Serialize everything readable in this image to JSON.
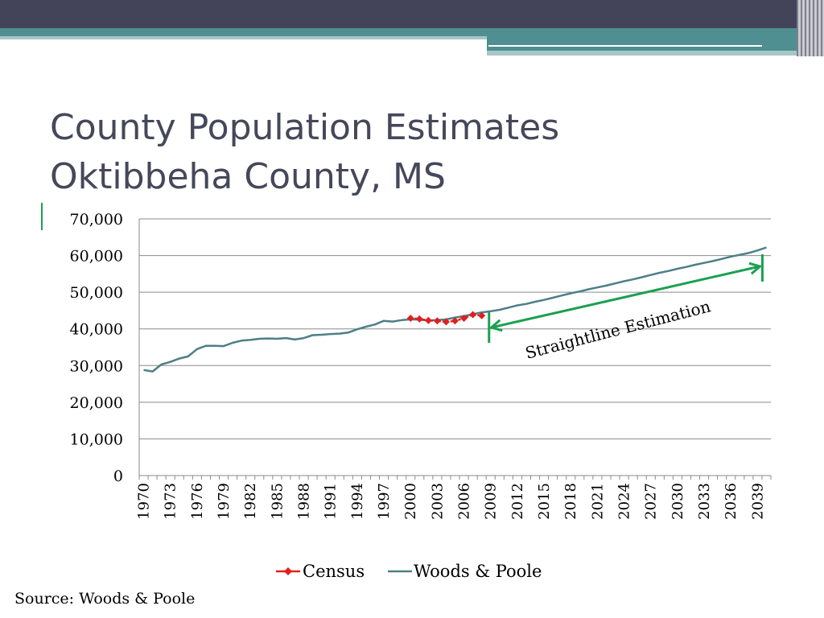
{
  "slide": {
    "title_line1": "County Population Estimates",
    "title_line2": "Oktibbeha County, MS",
    "source": "Source:  Woods & Poole"
  },
  "colors": {
    "header_dark": "#43445a",
    "header_teal": "#4f8f91",
    "header_light_teal": "#a8c6c7",
    "title": "#45475a",
    "census": "#e02020",
    "woods_poole": "#4d7f87",
    "annotation": "#1aa050"
  },
  "chart_data": {
    "type": "line",
    "title": "",
    "xlabel": "",
    "ylabel": "",
    "ylim": [
      0,
      70000
    ],
    "yticks": [
      0,
      10000,
      20000,
      30000,
      40000,
      50000,
      60000,
      70000
    ],
    "ytick_labels": [
      "0",
      "10,000",
      "20,000",
      "30,000",
      "40,000",
      "50,000",
      "60,000",
      "70,000"
    ],
    "x_range": [
      1970,
      2040
    ],
    "xtick_labels": [
      "1970",
      "1973",
      "1976",
      "1979",
      "1982",
      "1985",
      "1988",
      "1991",
      "1994",
      "1997",
      "2000",
      "2003",
      "2006",
      "2009",
      "2012",
      "2015",
      "2018",
      "2021",
      "2024",
      "2027",
      "2030",
      "2033",
      "2036",
      "2039"
    ],
    "grid": "horizontal",
    "legend_position": "bottom",
    "series": [
      {
        "name": "Census",
        "marker": "diamond",
        "x": [
          2000,
          2001,
          2002,
          2003,
          2004,
          2005,
          2006,
          2007,
          2008
        ],
        "values": [
          42900,
          42700,
          42300,
          42200,
          41900,
          42200,
          42900,
          43900,
          43600
        ]
      },
      {
        "name": "Woods & Poole",
        "marker": "none",
        "x": [
          1970,
          1971,
          1972,
          1973,
          1974,
          1975,
          1976,
          1977,
          1978,
          1979,
          1980,
          1981,
          1982,
          1983,
          1984,
          1985,
          1986,
          1987,
          1988,
          1989,
          1990,
          1991,
          1992,
          1993,
          1994,
          1995,
          1996,
          1997,
          1998,
          1999,
          2000,
          2001,
          2002,
          2003,
          2004,
          2005,
          2006,
          2007,
          2008,
          2009,
          2010,
          2011,
          2012,
          2013,
          2014,
          2015,
          2016,
          2017,
          2018,
          2019,
          2020,
          2021,
          2022,
          2023,
          2024,
          2025,
          2026,
          2027,
          2028,
          2029,
          2030,
          2031,
          2032,
          2033,
          2034,
          2035,
          2036,
          2037,
          2038,
          2039,
          2040
        ],
        "values": [
          28800,
          28400,
          30300,
          31000,
          31900,
          32500,
          34500,
          35400,
          35400,
          35300,
          36200,
          36800,
          37000,
          37300,
          37400,
          37300,
          37500,
          37100,
          37500,
          38300,
          38400,
          38600,
          38700,
          39000,
          39900,
          40600,
          41200,
          42200,
          42000,
          42400,
          42600,
          42500,
          42300,
          42400,
          42600,
          43100,
          43500,
          44000,
          44500,
          44800,
          45200,
          45800,
          46400,
          46800,
          47400,
          47900,
          48500,
          49100,
          49700,
          50200,
          50800,
          51300,
          51800,
          52400,
          53000,
          53500,
          54100,
          54700,
          55300,
          55800,
          56400,
          56900,
          57500,
          58000,
          58500,
          59100,
          59700,
          60200,
          60700,
          61400,
          62200
        ]
      }
    ],
    "annotation": {
      "text": "Straightline Estimation",
      "x_start": 2009,
      "x_end": 2039
    }
  }
}
